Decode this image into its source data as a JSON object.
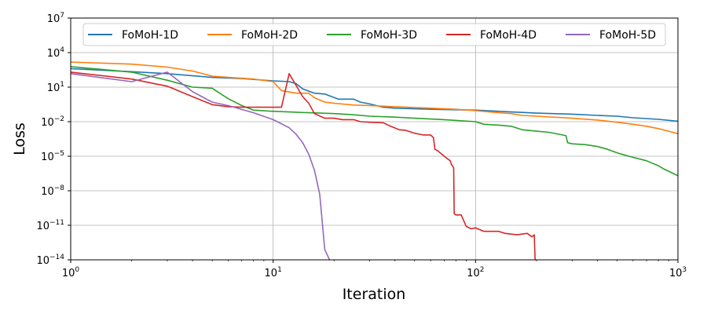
{
  "chart_data": {
    "type": "line",
    "title": "",
    "xlabel": "Iteration",
    "ylabel": "Loss",
    "xscale": "log",
    "yscale": "log",
    "xlim": [
      1,
      1000
    ],
    "ylim": [
      1e-14,
      10000000.0
    ],
    "grid": true,
    "legend_position": "top",
    "x_ticks": [
      {
        "value": 1,
        "base": "10",
        "exp": "0"
      },
      {
        "value": 10,
        "base": "10",
        "exp": "1"
      },
      {
        "value": 100,
        "base": "10",
        "exp": "2"
      },
      {
        "value": 1000,
        "base": "10",
        "exp": "3"
      }
    ],
    "y_ticks": [
      {
        "value": 10000000.0,
        "base": "10",
        "exp": "7"
      },
      {
        "value": 10000.0,
        "base": "10",
        "exp": "4"
      },
      {
        "value": 10,
        "base": "10",
        "exp": "1"
      },
      {
        "value": 0.01,
        "base": "10",
        "exp": "−2"
      },
      {
        "value": 1e-05,
        "base": "10",
        "exp": "−5"
      },
      {
        "value": 1e-08,
        "base": "10",
        "exp": "−8"
      },
      {
        "value": 1e-11,
        "base": "10",
        "exp": "−11"
      },
      {
        "value": 1e-14,
        "base": "10",
        "exp": "−14"
      }
    ],
    "series": [
      {
        "name": "FoMoH-1D",
        "color": "#1f77b4",
        "points": [
          [
            1,
            400
          ],
          [
            2,
            220
          ],
          [
            3,
            150
          ],
          [
            5,
            70
          ],
          [
            7,
            55
          ],
          [
            10,
            35
          ],
          [
            12,
            30
          ],
          [
            13,
            20
          ],
          [
            14,
            7
          ],
          [
            16,
            3
          ],
          [
            18,
            2.5
          ],
          [
            21,
            0.9
          ],
          [
            25,
            0.9
          ],
          [
            27,
            0.5
          ],
          [
            30,
            0.35
          ],
          [
            35,
            0.18
          ],
          [
            40,
            0.15
          ],
          [
            60,
            0.12
          ],
          [
            100,
            0.1
          ],
          [
            150,
            0.07
          ],
          [
            200,
            0.055
          ],
          [
            300,
            0.045
          ],
          [
            400,
            0.035
          ],
          [
            500,
            0.03
          ],
          [
            600,
            0.022
          ],
          [
            800,
            0.016
          ],
          [
            1000,
            0.011
          ]
        ]
      },
      {
        "name": "FoMoH-2D",
        "color": "#ff7f0e",
        "points": [
          [
            1,
            1500
          ],
          [
            2,
            1000
          ],
          [
            3,
            550
          ],
          [
            4,
            250
          ],
          [
            5,
            90
          ],
          [
            6,
            70
          ],
          [
            8,
            50
          ],
          [
            10,
            30
          ],
          [
            11,
            5
          ],
          [
            13,
            3
          ],
          [
            15,
            3
          ],
          [
            16,
            1.2
          ],
          [
            18,
            0.5
          ],
          [
            20,
            0.4
          ],
          [
            25,
            0.28
          ],
          [
            30,
            0.25
          ],
          [
            40,
            0.2
          ],
          [
            60,
            0.15
          ],
          [
            80,
            0.12
          ],
          [
            100,
            0.09
          ],
          [
            130,
            0.06
          ],
          [
            150,
            0.05
          ],
          [
            170,
            0.035
          ],
          [
            200,
            0.03
          ],
          [
            300,
            0.02
          ],
          [
            400,
            0.014
          ],
          [
            500,
            0.009
          ],
          [
            600,
            0.006
          ],
          [
            700,
            0.004
          ],
          [
            800,
            0.0025
          ],
          [
            900,
            0.0015
          ],
          [
            1000,
            0.0009
          ]
        ]
      },
      {
        "name": "FoMoH-3D",
        "color": "#2ca02c",
        "points": [
          [
            1,
            600
          ],
          [
            2,
            200
          ],
          [
            3,
            40
          ],
          [
            4,
            10
          ],
          [
            5,
            8
          ],
          [
            6,
            1
          ],
          [
            7,
            0.25
          ],
          [
            8,
            0.1
          ],
          [
            10,
            0.08
          ],
          [
            12,
            0.07
          ],
          [
            15,
            0.06
          ],
          [
            20,
            0.05
          ],
          [
            25,
            0.04
          ],
          [
            30,
            0.03
          ],
          [
            40,
            0.025
          ],
          [
            50,
            0.02
          ],
          [
            70,
            0.015
          ],
          [
            100,
            0.01
          ],
          [
            110,
            0.006
          ],
          [
            130,
            0.005
          ],
          [
            150,
            0.004
          ],
          [
            170,
            0.002
          ],
          [
            200,
            0.0015
          ],
          [
            230,
            0.0012
          ],
          [
            260,
            0.0008
          ],
          [
            280,
            0.0006
          ],
          [
            285,
            0.00015
          ],
          [
            300,
            0.00012
          ],
          [
            350,
            0.0001
          ],
          [
            400,
            7e-05
          ],
          [
            450,
            4e-05
          ],
          [
            500,
            2e-05
          ],
          [
            550,
            1.2e-05
          ],
          [
            600,
            8e-06
          ],
          [
            700,
            4e-06
          ],
          [
            800,
            1.5e-06
          ],
          [
            850,
            8e-07
          ],
          [
            900,
            5e-07
          ],
          [
            1000,
            2e-07
          ]
        ]
      },
      {
        "name": "FoMoH-4D",
        "color": "#d62728",
        "points": [
          [
            1,
            200
          ],
          [
            2,
            50
          ],
          [
            3,
            12
          ],
          [
            4,
            1.5
          ],
          [
            5,
            0.3
          ],
          [
            6,
            0.2
          ],
          [
            7,
            0.18
          ],
          [
            9,
            0.18
          ],
          [
            11,
            0.18
          ],
          [
            12,
            150
          ],
          [
            14,
            1.5
          ],
          [
            15,
            0.4
          ],
          [
            16,
            0.05
          ],
          [
            18,
            0.02
          ],
          [
            20,
            0.02
          ],
          [
            22,
            0.015
          ],
          [
            25,
            0.015
          ],
          [
            27,
            0.01
          ],
          [
            30,
            0.009
          ],
          [
            35,
            0.008
          ],
          [
            38,
            0.004
          ],
          [
            42,
            0.002
          ],
          [
            45,
            0.0018
          ],
          [
            50,
            0.001
          ],
          [
            55,
            0.0007
          ],
          [
            60,
            0.0007
          ],
          [
            62,
            0.0004
          ],
          [
            63,
            4e-05
          ],
          [
            65,
            3e-05
          ],
          [
            70,
            1e-05
          ],
          [
            75,
            4e-06
          ],
          [
            76,
            2e-06
          ],
          [
            78,
            1e-06
          ],
          [
            78.5,
            1e-10
          ],
          [
            80,
            8e-11
          ],
          [
            85,
            8e-11
          ],
          [
            90,
            8e-12
          ],
          [
            95,
            5e-12
          ],
          [
            100,
            6e-12
          ],
          [
            110,
            3e-12
          ],
          [
            130,
            3e-12
          ],
          [
            140,
            2e-12
          ],
          [
            160,
            1.5e-12
          ],
          [
            180,
            2e-12
          ],
          [
            190,
            1e-12
          ],
          [
            195,
            1.5e-12
          ],
          [
            197,
            1e-14
          ]
        ]
      },
      {
        "name": "FoMoH-5D",
        "color": "#9467bd",
        "points": [
          [
            1,
            150
          ],
          [
            2,
            30
          ],
          [
            3,
            200
          ],
          [
            4,
            4
          ],
          [
            5,
            0.5
          ],
          [
            6,
            0.25
          ],
          [
            8,
            0.06
          ],
          [
            10,
            0.015
          ],
          [
            12,
            0.003
          ],
          [
            13,
            0.0008
          ],
          [
            14,
            0.00015
          ],
          [
            15,
            1.5e-05
          ],
          [
            16,
            6e-07
          ],
          [
            17,
            5e-09
          ],
          [
            18,
            8e-14
          ],
          [
            19,
            1e-14
          ]
        ]
      }
    ]
  }
}
